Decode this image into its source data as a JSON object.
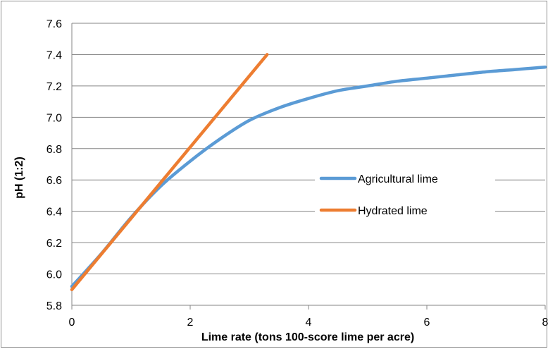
{
  "chart_data": {
    "type": "line",
    "title": "",
    "xlabel": "Lime rate (tons 100-score lime per acre)",
    "ylabel": "pH (1:2)",
    "xlim": [
      0,
      8
    ],
    "ylim": [
      5.8,
      7.6
    ],
    "x_ticks": [
      "0",
      "2",
      "4",
      "6",
      "8"
    ],
    "y_ticks": [
      "5.8",
      "6.0",
      "6.2",
      "6.4",
      "6.6",
      "6.8",
      "7.0",
      "7.2",
      "7.4",
      "7.6"
    ],
    "grid": "horizontal",
    "legend": "center-right",
    "series": [
      {
        "name": "Agricultural lime",
        "color": "#5b9bd5",
        "x": [
          0,
          0.5,
          1,
          1.5,
          2,
          2.5,
          3,
          3.5,
          4,
          4.5,
          5,
          5.5,
          6,
          6.5,
          7,
          7.5,
          8
        ],
        "y": [
          5.92,
          6.13,
          6.36,
          6.56,
          6.72,
          6.86,
          6.98,
          7.06,
          7.12,
          7.17,
          7.2,
          7.23,
          7.25,
          7.27,
          7.29,
          7.305,
          7.32
        ]
      },
      {
        "name": "Hydrated lime",
        "color": "#ed7d31",
        "x": [
          0,
          3.3
        ],
        "y": [
          5.9,
          7.4
        ]
      }
    ]
  }
}
